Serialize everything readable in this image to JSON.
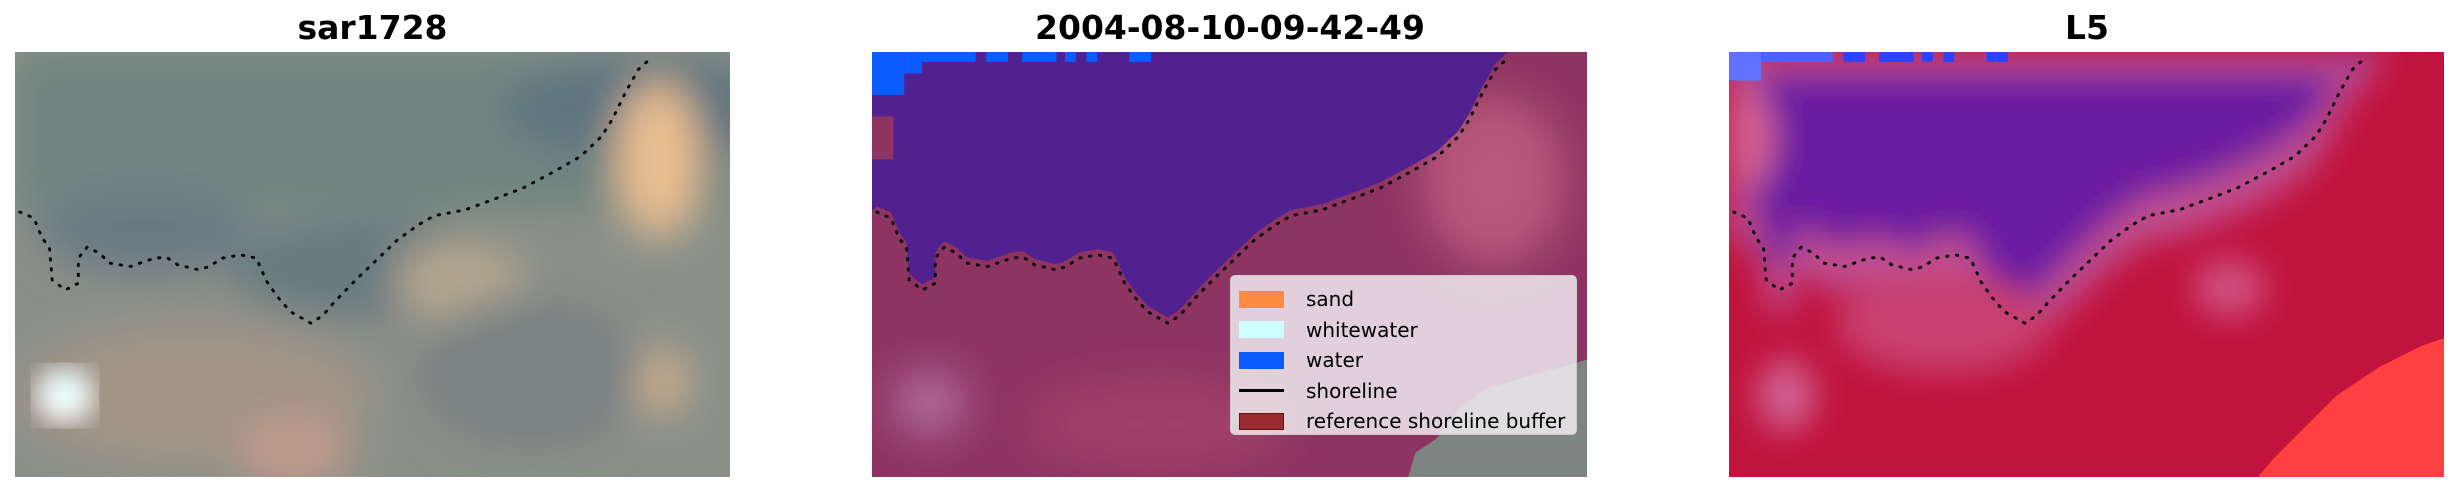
{
  "panels": [
    {
      "title": "sar1728"
    },
    {
      "title": "2004-08-10-09-42-49"
    },
    {
      "title": "L5"
    }
  ],
  "legend": {
    "items": [
      {
        "label": "sand",
        "color": "#ff8c40",
        "kind": "patch"
      },
      {
        "label": "whitewater",
        "color": "#ccffff",
        "kind": "patch"
      },
      {
        "label": "water",
        "color": "#0a5cff",
        "kind": "patch"
      },
      {
        "label": "shoreline",
        "color": "#000000",
        "kind": "line"
      },
      {
        "label": "reference shoreline buffer",
        "color": "#9b2a30",
        "kind": "patch"
      }
    ]
  },
  "colors": {
    "water_class": "#51228f",
    "buffer_overlay": "#8e3463",
    "l5_land": "#c0143e",
    "l5_water": "#6a1aa0"
  }
}
